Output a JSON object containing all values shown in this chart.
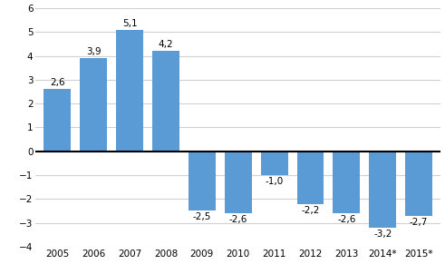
{
  "categories": [
    "2005",
    "2006",
    "2007",
    "2008",
    "2009",
    "2010",
    "2011",
    "2012",
    "2013",
    "2014*",
    "2015*"
  ],
  "values": [
    2.6,
    3.9,
    5.1,
    4.2,
    -2.5,
    -2.6,
    -1.0,
    -2.2,
    -2.6,
    -3.2,
    -2.7
  ],
  "bar_color": "#5b9bd5",
  "ylim": [
    -4,
    6
  ],
  "yticks": [
    -4,
    -3,
    -2,
    -1,
    0,
    1,
    2,
    3,
    4,
    5,
    6
  ],
  "grid_color": "#d0d0d0",
  "background_color": "#ffffff",
  "label_fontsize": 7.5,
  "tick_fontsize": 7.5,
  "value_labels": [
    "2,6",
    "3,9",
    "5,1",
    "4,2",
    "-2,5",
    "-2,6",
    "-1,0",
    "-2,2",
    "-2,6",
    "-3,2",
    "-2,7"
  ]
}
